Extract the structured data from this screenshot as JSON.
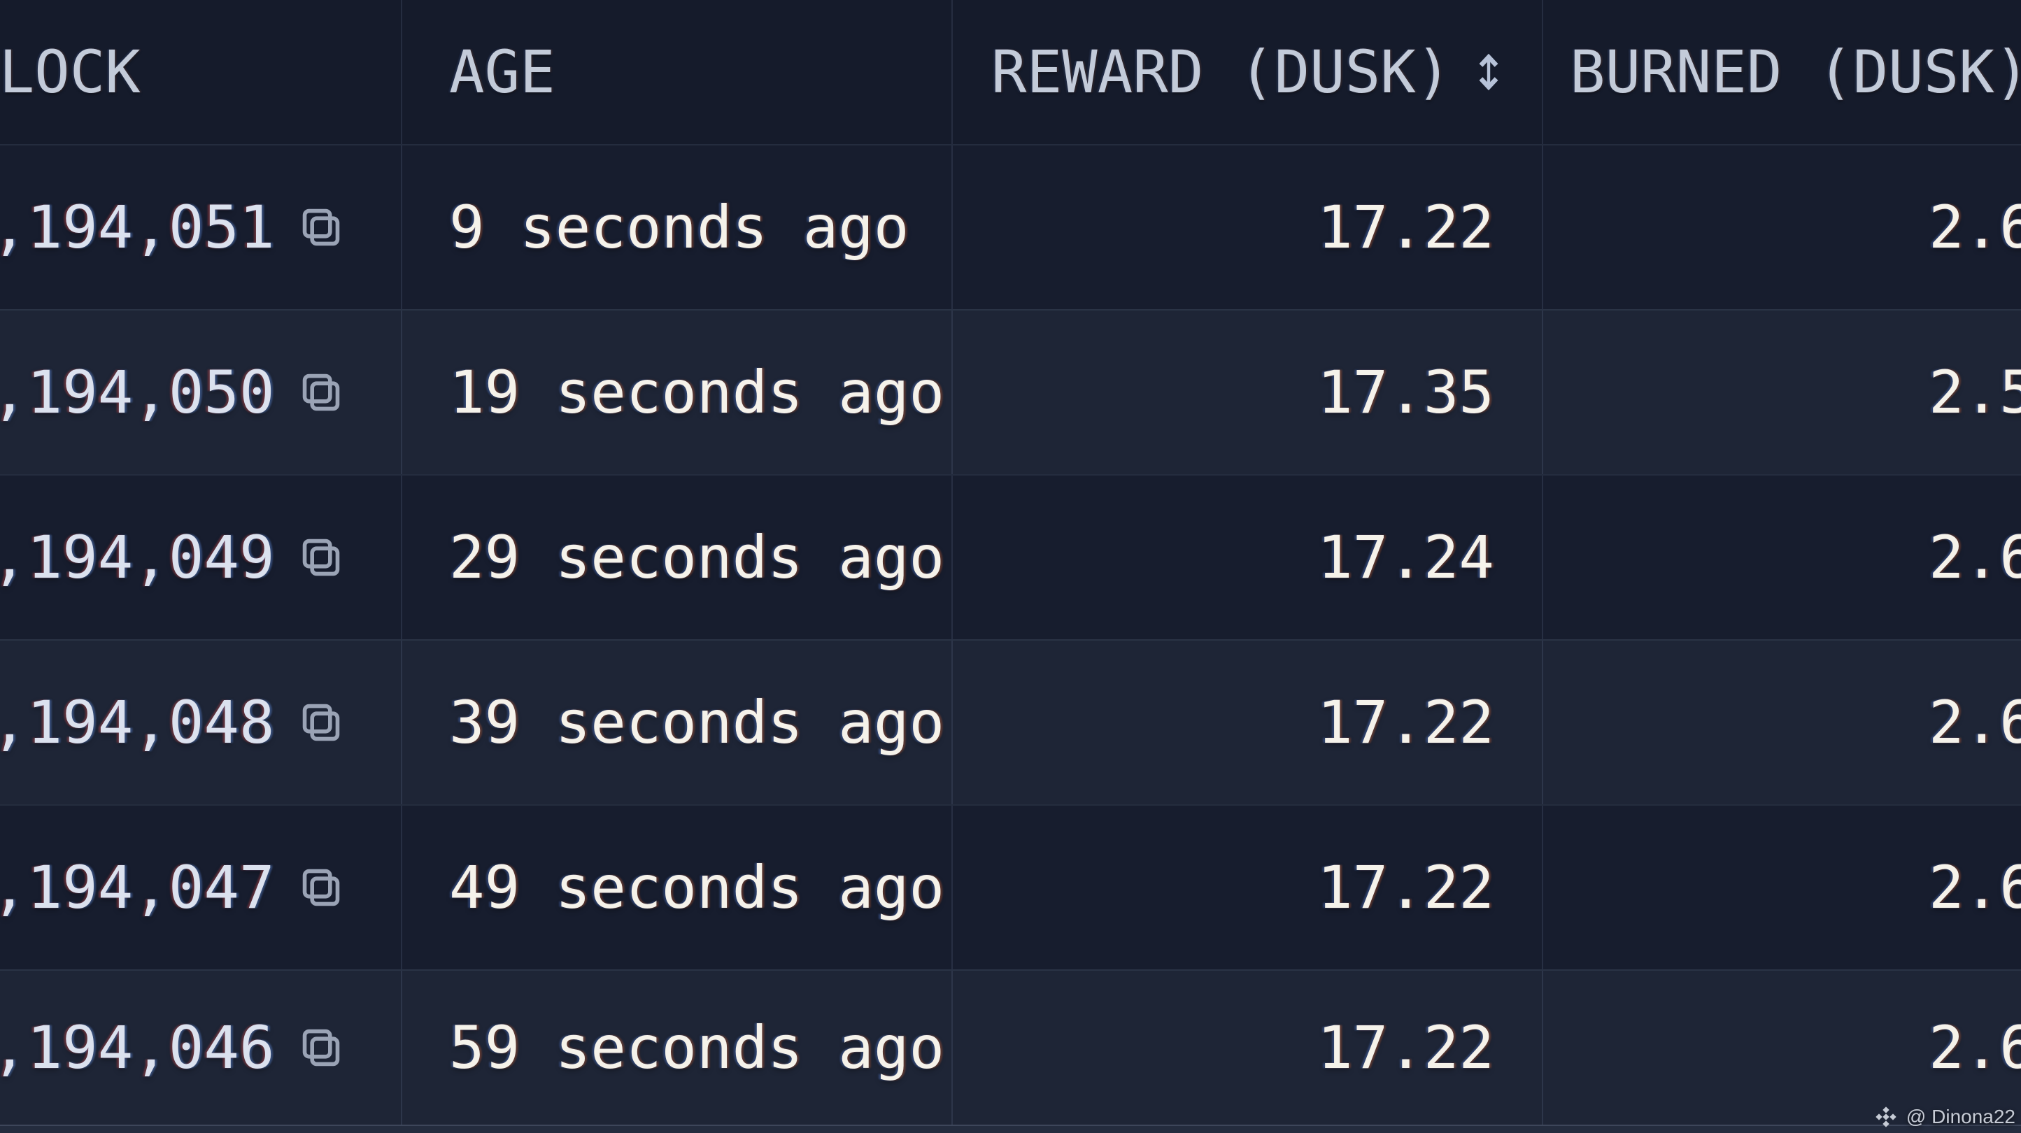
{
  "table": {
    "columns": [
      {
        "key": "block",
        "label": "BLOCK"
      },
      {
        "key": "age",
        "label": "AGE"
      },
      {
        "key": "reward",
        "label": "REWARD (DUSK)",
        "sortable": true,
        "sort_icon": "up-down-arrows"
      },
      {
        "key": "burned",
        "label": "BURNED (DUSK)"
      }
    ],
    "rows": [
      {
        "block": ",194,051",
        "age": "9 seconds ago",
        "reward": "17.22",
        "burned": "2.6"
      },
      {
        "block": ",194,050",
        "age": "19 seconds ago",
        "reward": "17.35",
        "burned": "2.5"
      },
      {
        "block": ",194,049",
        "age": "29 seconds ago",
        "reward": "17.24",
        "burned": "2.6"
      },
      {
        "block": ",194,048",
        "age": "39 seconds ago",
        "reward": "17.22",
        "burned": "2.6"
      },
      {
        "block": ",194,047",
        "age": "49 seconds ago",
        "reward": "17.22",
        "burned": "2.6"
      },
      {
        "block": ",194,046",
        "age": "59 seconds ago",
        "reward": "17.22",
        "burned": "2.6"
      }
    ],
    "row_icon": "copy-icon"
  },
  "watermark": {
    "logo_icon": "binance-diamond-icon",
    "text": "@ Dinona22"
  },
  "colors": {
    "header_bg": "#151b2b",
    "row_dark": "#171d2e",
    "row_light": "#1e2536",
    "next_row_edge": "#242c3e",
    "text_primary": "#f5f2ea",
    "text_block_number": "#dbe1ee",
    "header_text": "#c3cbd9",
    "icon": "#9aa3b5",
    "watermark_text": "#c6cbd5"
  }
}
